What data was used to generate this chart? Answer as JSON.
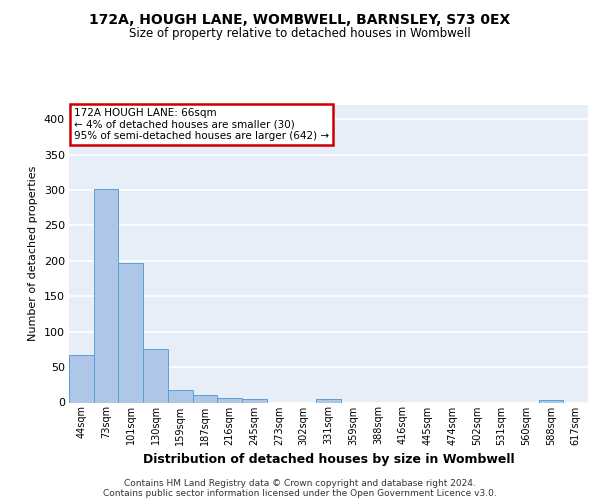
{
  "title1": "172A, HOUGH LANE, WOMBWELL, BARNSLEY, S73 0EX",
  "title2": "Size of property relative to detached houses in Wombwell",
  "xlabel": "Distribution of detached houses by size in Wombwell",
  "ylabel": "Number of detached properties",
  "categories": [
    "44sqm",
    "73sqm",
    "101sqm",
    "130sqm",
    "159sqm",
    "187sqm",
    "216sqm",
    "245sqm",
    "273sqm",
    "302sqm",
    "331sqm",
    "359sqm",
    "388sqm",
    "416sqm",
    "445sqm",
    "474sqm",
    "502sqm",
    "531sqm",
    "560sqm",
    "588sqm",
    "617sqm"
  ],
  "values": [
    67,
    302,
    197,
    75,
    18,
    10,
    6,
    5,
    0,
    0,
    5,
    0,
    0,
    0,
    0,
    0,
    0,
    0,
    0,
    4,
    0
  ],
  "bar_color": "#aec6e8",
  "bar_edge_color": "#5a9fd4",
  "bg_color": "#e8eef8",
  "grid_color": "#ffffff",
  "annotation_text": "172A HOUGH LANE: 66sqm\n← 4% of detached houses are smaller (30)\n95% of semi-detached houses are larger (642) →",
  "annotation_box_color": "#ffffff",
  "annotation_box_edge": "#cc0000",
  "ylim": [
    0,
    420
  ],
  "yticks": [
    0,
    50,
    100,
    150,
    200,
    250,
    300,
    350,
    400
  ],
  "footer1": "Contains HM Land Registry data © Crown copyright and database right 2024.",
  "footer2": "Contains public sector information licensed under the Open Government Licence v3.0."
}
